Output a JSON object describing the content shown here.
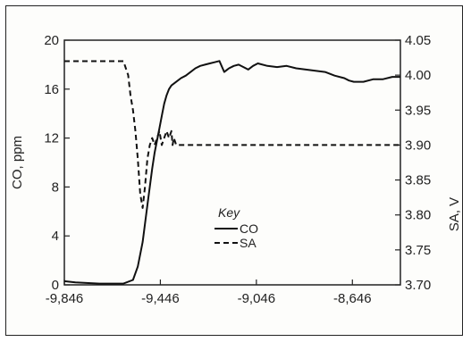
{
  "chart_data": {
    "type": "line",
    "title": "",
    "xlabel": "",
    "x_tick_labels": [
      "-9,846",
      "-9,446",
      "-9,046",
      "-8,646"
    ],
    "x_ticks": [
      -9846,
      -9446,
      -9046,
      -8646
    ],
    "xlim": [
      -9846,
      -8446
    ],
    "y_left": {
      "label": "CO,  ppm",
      "ylim": [
        0,
        20
      ],
      "ticks": [
        0,
        4,
        8,
        12,
        16,
        20
      ],
      "tick_labels": [
        "0",
        "4",
        "8",
        "12",
        "16",
        "20"
      ]
    },
    "y_right": {
      "label": "SA, V",
      "ylim": [
        3.7,
        4.05
      ],
      "ticks": [
        3.7,
        3.75,
        3.8,
        3.85,
        3.9,
        3.95,
        4.0,
        4.05
      ],
      "tick_labels": [
        "3.70",
        "3.75",
        "3.80",
        "3.85",
        "3.90",
        "3.95",
        "4.00",
        "4.05"
      ]
    },
    "legend": {
      "title": "Key",
      "placement": "center",
      "entries": [
        {
          "label": "CO",
          "style": "solid"
        },
        {
          "label": "SA",
          "style": "dashed"
        }
      ]
    },
    "series": [
      {
        "name": "CO",
        "axis": "left",
        "style": "solid",
        "x": [
          -9846,
          -9800,
          -9700,
          -9600,
          -9560,
          -9540,
          -9520,
          -9500,
          -9480,
          -9470,
          -9460,
          -9450,
          -9440,
          -9430,
          -9420,
          -9410,
          -9400,
          -9380,
          -9360,
          -9340,
          -9320,
          -9300,
          -9280,
          -9260,
          -9240,
          -9220,
          -9200,
          -9180,
          -9160,
          -9140,
          -9120,
          -9100,
          -9080,
          -9060,
          -9040,
          -9000,
          -8960,
          -8920,
          -8880,
          -8840,
          -8800,
          -8760,
          -8720,
          -8680,
          -8660,
          -8640,
          -8600,
          -8560,
          -8520,
          -8480,
          -8446
        ],
        "values": [
          0.3,
          0.2,
          0.1,
          0.1,
          0.4,
          1.5,
          3.5,
          6.5,
          9.5,
          10.8,
          11.8,
          12.8,
          13.8,
          14.8,
          15.5,
          16.0,
          16.3,
          16.6,
          16.9,
          17.1,
          17.4,
          17.7,
          17.9,
          18.0,
          18.1,
          18.2,
          18.3,
          17.4,
          17.7,
          17.9,
          18.0,
          17.8,
          17.6,
          17.9,
          18.1,
          17.9,
          17.8,
          17.9,
          17.7,
          17.6,
          17.5,
          17.4,
          17.1,
          16.9,
          16.7,
          16.6,
          16.6,
          16.8,
          16.8,
          17.0,
          17.0
        ]
      },
      {
        "name": "SA",
        "axis": "right",
        "style": "dashed",
        "x": [
          -9846,
          -9800,
          -9700,
          -9660,
          -9600,
          -9580,
          -9570,
          -9560,
          -9550,
          -9540,
          -9530,
          -9520,
          -9510,
          -9500,
          -9490,
          -9480,
          -9470,
          -9460,
          -9450,
          -9440,
          -9430,
          -9420,
          -9410,
          -9400,
          -9395,
          -9390,
          -9380,
          -9360,
          -9300,
          -9200,
          -9046,
          -8800,
          -8646,
          -8446
        ],
        "values": [
          4.02,
          4.02,
          4.02,
          4.02,
          4.02,
          4.0,
          3.97,
          3.95,
          3.92,
          3.88,
          3.83,
          3.81,
          3.84,
          3.88,
          3.9,
          3.91,
          3.9,
          3.91,
          3.92,
          3.9,
          3.91,
          3.92,
          3.91,
          3.92,
          3.9,
          3.91,
          3.9,
          3.9,
          3.9,
          3.9,
          3.9,
          3.9,
          3.9,
          3.9
        ]
      }
    ]
  }
}
